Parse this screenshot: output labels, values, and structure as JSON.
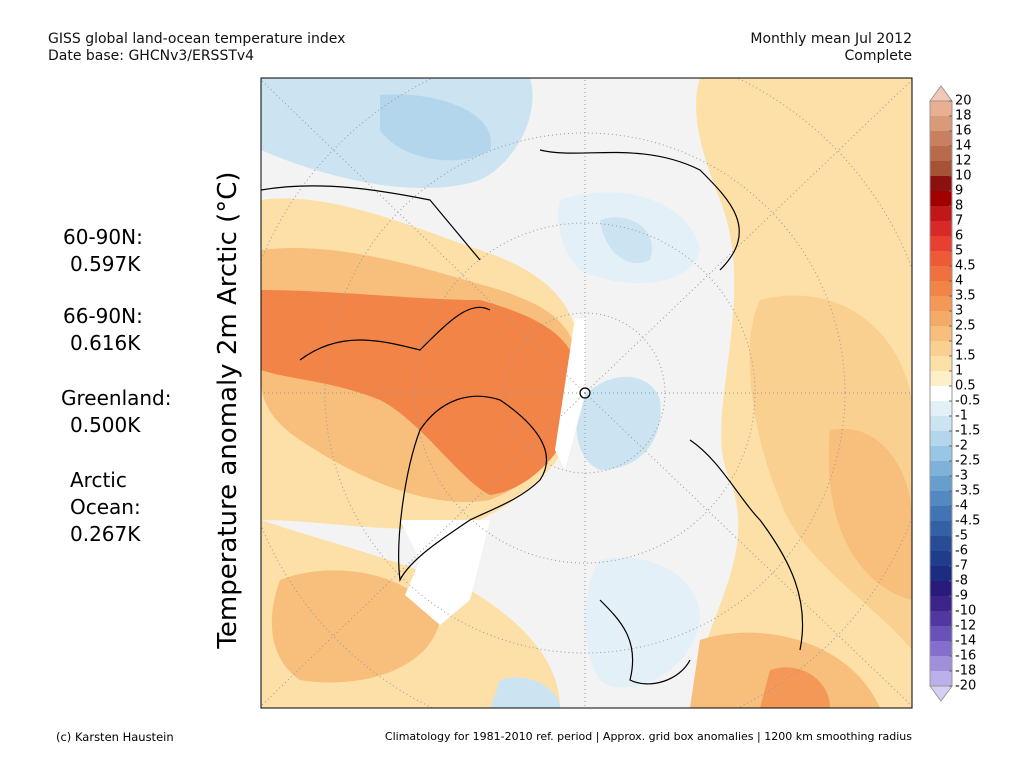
{
  "header": {
    "title": "GISS global land-ocean temperature index",
    "subtitle": "Date base: GHCNv3/ERSSTv4",
    "period": "Monthly mean Jul 2012",
    "status": "Complete"
  },
  "stats": [
    {
      "label": "60-90N:",
      "value": "0.597K"
    },
    {
      "label": "66-90N:",
      "value": "0.616K"
    },
    {
      "label": "Greenland:",
      "value": "0.500K"
    },
    {
      "label": "Arctic Ocean:",
      "value": "0.267K"
    }
  ],
  "axis_label": "Temperature anomaly 2m Arctic (°C)",
  "colorbar": {
    "ticks": [
      20,
      18,
      16,
      14,
      12,
      10,
      9,
      8,
      7,
      6,
      5,
      4.5,
      4,
      3.5,
      3,
      2.5,
      2,
      1.5,
      1,
      0.5,
      -0.5,
      -1,
      -1.5,
      -2,
      -2.5,
      -3,
      -3.5,
      -4,
      -4.5,
      -5,
      -6,
      -7,
      -8,
      -9,
      -10,
      -12,
      -14,
      -16,
      -18,
      -20
    ],
    "colors": [
      "#f4c8b4",
      "#e8b090",
      "#d89a78",
      "#c88060",
      "#b86a4a",
      "#a65236",
      "#8c1010",
      "#a00000",
      "#c01818",
      "#d82828",
      "#e84030",
      "#ee5a38",
      "#f07040",
      "#f28448",
      "#f49858",
      "#f6aa68",
      "#f8be7c",
      "#fad090",
      "#fce0a8",
      "#fdf0c8",
      "#ffffff",
      "#e4f0f8",
      "#cce4f2",
      "#b4d6ec",
      "#98c6e4",
      "#7eb2d8",
      "#689ecc",
      "#5488c0",
      "#4274b4",
      "#3460a6",
      "#284c98",
      "#203c8c",
      "#1c2c80",
      "#2a1a7c",
      "#3c2488",
      "#5038a0",
      "#6852b8",
      "#8470cc",
      "#a090dc",
      "#bcb0ea",
      "#d8d0f4"
    ]
  },
  "footer": {
    "credit": "(c) Karsten Haustein",
    "note": "Climatology for 1981-2010 ref. period | Approx. grid box anomalies | 1200 km smoothing radius"
  }
}
